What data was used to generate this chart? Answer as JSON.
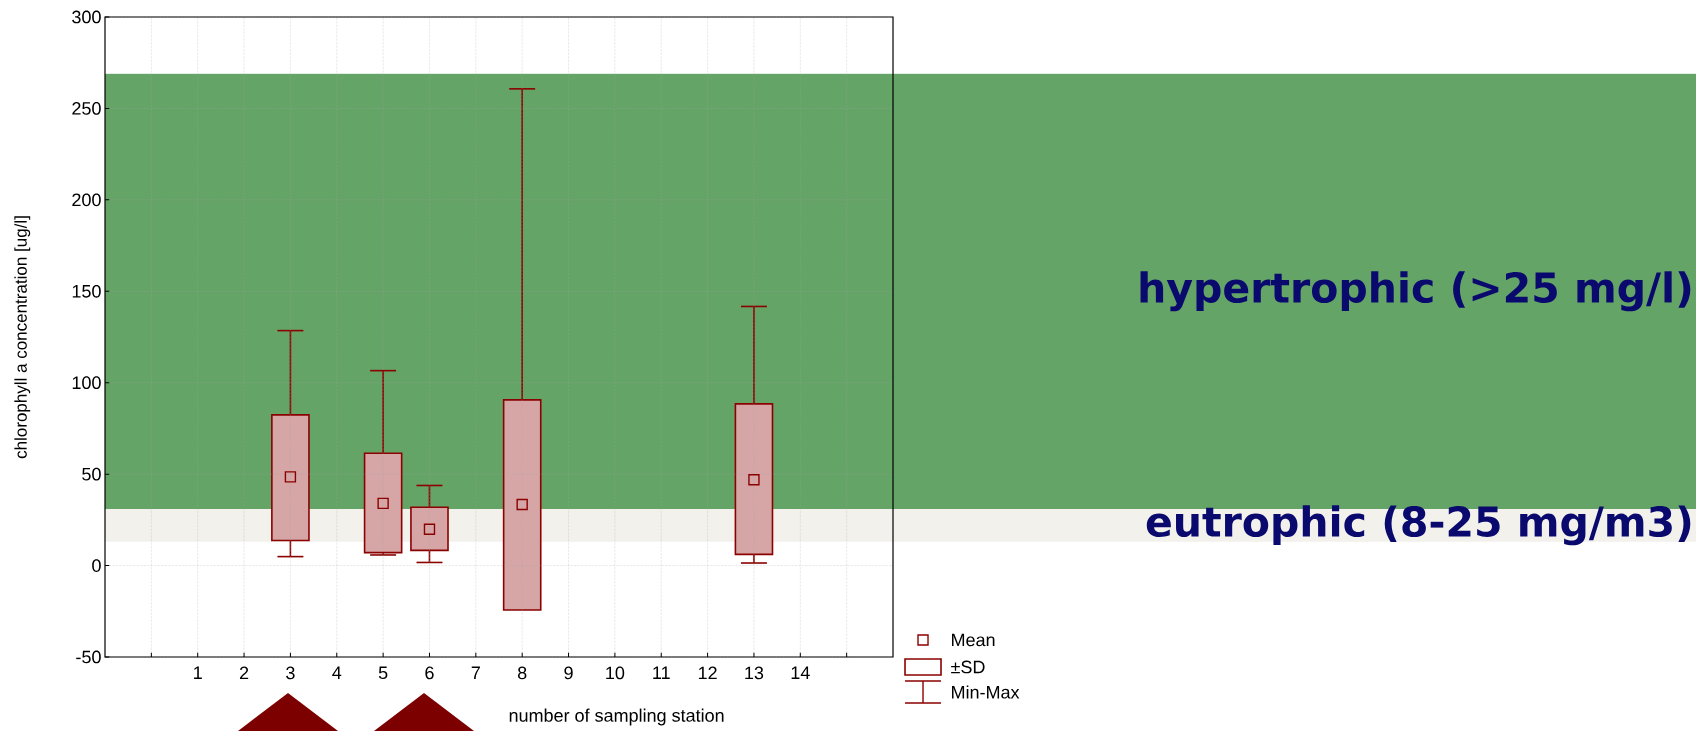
{
  "chart_data": {
    "type": "box",
    "xlabel": "number of sampling station",
    "ylabel": "chlorophyll a concentration [ug/l]",
    "categories": [
      null,
      "1",
      "2",
      "3",
      "4",
      "5",
      "6",
      "7",
      "8",
      "9",
      "10",
      "11",
      "12",
      "13",
      "14",
      null
    ],
    "series": [
      {
        "color": "#8b0000",
        "boxes": [
          null,
          null,
          null,
          {
            "low": 4.9,
            "q1": 13.7,
            "q3": 82.4,
            "high": 128.5,
            "mean": 48.5
          },
          null,
          {
            "low": 5.8,
            "q1": 7.1,
            "q3": 61.4,
            "high": 106.6,
            "mean": 34
          },
          {
            "low": 1.7,
            "q1": 8.3,
            "q3": 31.9,
            "high": 43.8,
            "mean": 19.9
          },
          null,
          {
            "low": null,
            "q1": -24.3,
            "q3": 90.6,
            "high": 260.7,
            "mean": 33.4
          },
          null,
          null,
          null,
          null,
          {
            "low": 1.4,
            "q1": 6.1,
            "q3": 88.4,
            "high": 141.7,
            "mean": 46.9
          },
          null,
          null
        ]
      }
    ],
    "ylim": [
      -50,
      300
    ],
    "yticks": [
      -50,
      0,
      50,
      100,
      150,
      200,
      250,
      300
    ],
    "grid": true,
    "legend": "bottom right",
    "marker": "square",
    "bands": [
      {
        "axis": "y",
        "from": 31,
        "to": 269,
        "label": "hypertrophic (>25 mg/l)",
        "color": "#65a467"
      },
      {
        "axis": "y",
        "from": 13,
        "to": 31,
        "label": "eutrophic (8-25 mg/m3)",
        "color": "#f2f1ec"
      }
    ],
    "annotations": [
      "Mean",
      "±SD",
      "Min-Max"
    ]
  }
}
